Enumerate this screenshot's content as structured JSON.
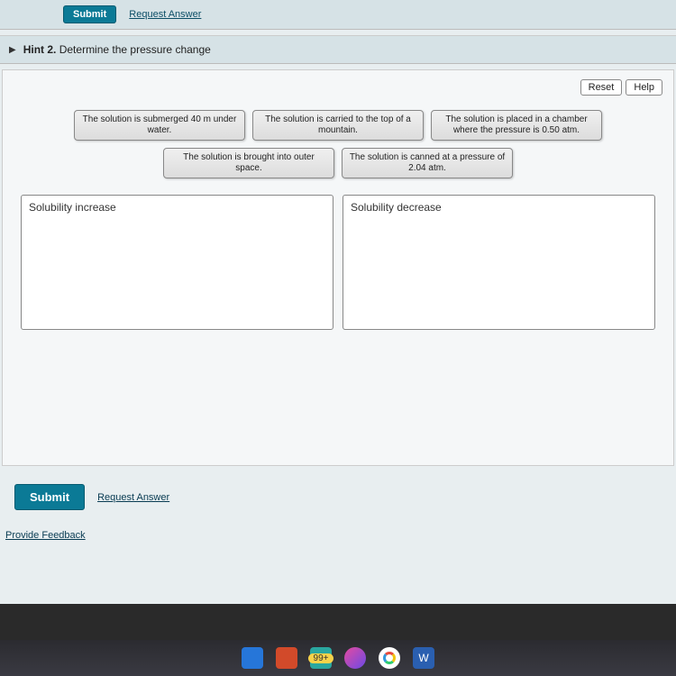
{
  "topbar": {
    "submit_label": "Submit",
    "request_label": "Request Answer"
  },
  "hint": {
    "prefix": "Hint 2.",
    "text": "Determine the pressure change"
  },
  "controls": {
    "reset": "Reset",
    "help": "Help"
  },
  "tiles": [
    "The solution is submerged 40 m under water.",
    "The solution is carried to the top of a mountain.",
    "The solution is placed in a chamber where the pressure is 0.50 atm.",
    "The solution is brought into outer space.",
    "The solution is canned at a pressure of 2.04 atm."
  ],
  "zones": {
    "increase": "Solubility increase",
    "decrease": "Solubility decrease"
  },
  "bottom": {
    "submit": "Submit",
    "request": "Request Answer"
  },
  "feedback": "Provide Feedback",
  "taskbar": {
    "badge": "99+"
  },
  "colors": {
    "screen_bg": "#e8eef0",
    "panel_bg": "#f5f7f8",
    "tile_border": "#888",
    "brand_blue": "#0b7a96"
  }
}
